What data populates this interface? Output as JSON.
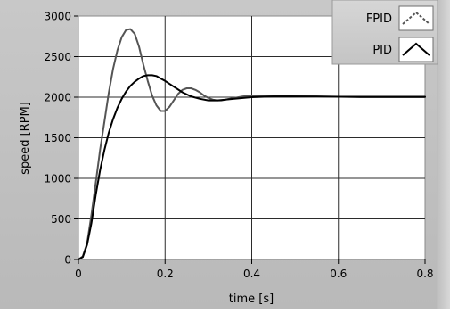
{
  "chart_data": {
    "type": "line",
    "title": "",
    "xlabel": "time [s]",
    "ylabel": "speed [RPM]",
    "xlim": [
      0,
      0.8
    ],
    "ylim": [
      0,
      3000
    ],
    "x_ticks": [
      0,
      0.2,
      0.4,
      0.6,
      0.8
    ],
    "x_tick_labels": [
      "0",
      "0.2",
      "0.4",
      "0.6",
      "0.8"
    ],
    "y_ticks": [
      0,
      500,
      1000,
      1500,
      2000,
      2500,
      3000
    ],
    "y_tick_labels": [
      "0",
      "500",
      "1000",
      "1500",
      "2000",
      "2500",
      "3000"
    ],
    "grid": true,
    "legend_position": "top-right",
    "series": [
      {
        "name": "FPID",
        "color": "#555555",
        "style": "solid",
        "x": [
          0,
          0.01,
          0.02,
          0.03,
          0.04,
          0.05,
          0.06,
          0.07,
          0.08,
          0.09,
          0.1,
          0.11,
          0.12,
          0.13,
          0.14,
          0.15,
          0.16,
          0.17,
          0.18,
          0.19,
          0.2,
          0.21,
          0.22,
          0.23,
          0.24,
          0.25,
          0.26,
          0.27,
          0.28,
          0.29,
          0.3,
          0.31,
          0.32,
          0.33,
          0.34,
          0.36,
          0.38,
          0.4,
          0.42,
          0.45,
          0.5,
          0.55,
          0.6,
          0.65,
          0.7,
          0.75,
          0.8
        ],
        "y": [
          0,
          40,
          200,
          550,
          950,
          1350,
          1700,
          2050,
          2350,
          2580,
          2740,
          2830,
          2840,
          2780,
          2620,
          2400,
          2200,
          2020,
          1900,
          1830,
          1830,
          1880,
          1960,
          2040,
          2090,
          2110,
          2110,
          2090,
          2060,
          2020,
          1990,
          1970,
          1960,
          1960,
          1970,
          1990,
          2010,
          2020,
          2020,
          2015,
          2010,
          2005,
          2005,
          2000,
          2000,
          2000,
          2000
        ]
      },
      {
        "name": "PID",
        "color": "#000000",
        "style": "solid",
        "x": [
          0,
          0.01,
          0.02,
          0.03,
          0.04,
          0.05,
          0.06,
          0.07,
          0.08,
          0.09,
          0.1,
          0.11,
          0.12,
          0.13,
          0.14,
          0.15,
          0.16,
          0.17,
          0.18,
          0.19,
          0.2,
          0.22,
          0.24,
          0.26,
          0.28,
          0.3,
          0.32,
          0.34,
          0.36,
          0.38,
          0.4,
          0.45,
          0.5,
          0.55,
          0.6,
          0.7,
          0.8
        ],
        "y": [
          0,
          30,
          180,
          450,
          800,
          1100,
          1350,
          1560,
          1730,
          1870,
          1980,
          2070,
          2140,
          2190,
          2230,
          2260,
          2270,
          2270,
          2260,
          2230,
          2200,
          2130,
          2060,
          2010,
          1980,
          1960,
          1960,
          1970,
          1980,
          1990,
          2000,
          2010,
          2010,
          2010,
          2005,
          2005,
          2005
        ]
      }
    ]
  }
}
